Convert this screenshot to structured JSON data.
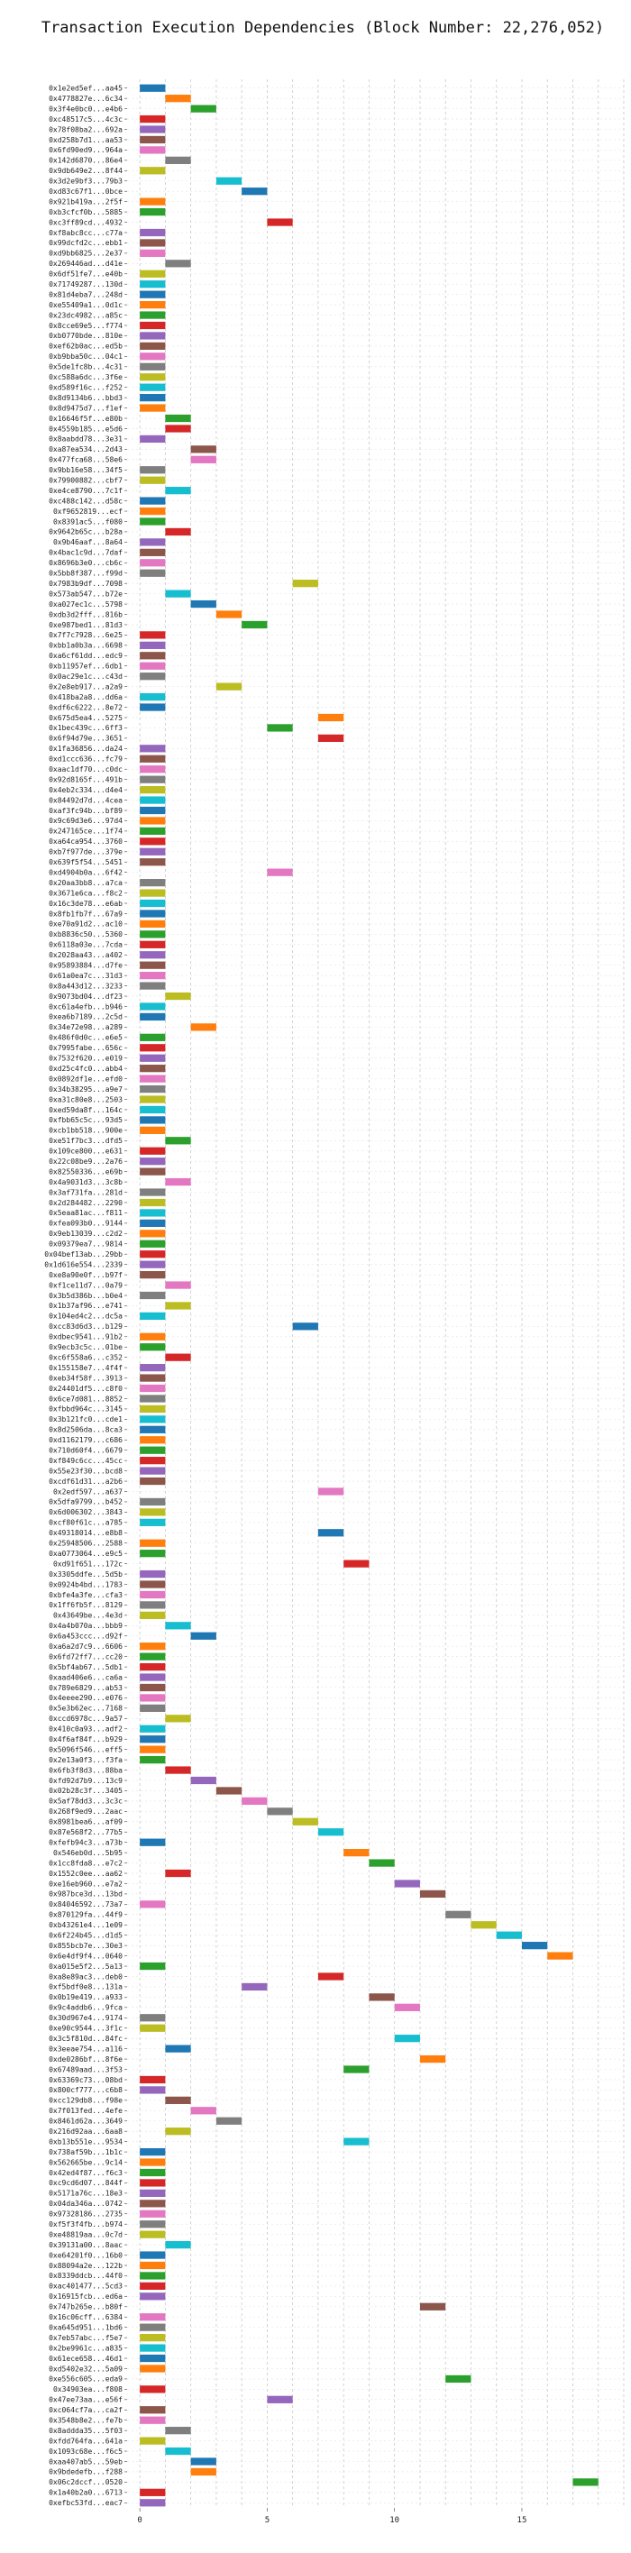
{
  "chart_data": {
    "type": "bar",
    "orientation": "horizontal-gantt",
    "title": "Transaction Execution Dependencies (Block Number: 22,276,052)",
    "xlabel": "",
    "ylabel": "",
    "xlim": [
      -0.5,
      19
    ],
    "xticks": [
      0,
      5,
      10,
      15
    ],
    "grid": true,
    "colors": [
      "#1f77b4",
      "#ff7f0e",
      "#2ca02c",
      "#d62728",
      "#9467bd",
      "#8c564b",
      "#e377c2",
      "#7f7f7f",
      "#bcbd22",
      "#17becf"
    ],
    "transactions": [
      {
        "label": "0x1e2ed5ef...aa45",
        "start": 0
      },
      {
        "label": "0x4778827e...6c34",
        "start": 1
      },
      {
        "label": "0x3f4e0bc0...e4b6",
        "start": 2
      },
      {
        "label": "0xc48517c5...4c3c",
        "start": 0
      },
      {
        "label": "0x78f08ba2...692a",
        "start": 0
      },
      {
        "label": "0xd258b7d1...aa53",
        "start": 0
      },
      {
        "label": "0x6fd90ed9...964a",
        "start": 0
      },
      {
        "label": "0x142d6870...86e4",
        "start": 1
      },
      {
        "label": "0x9db649e2...8f44",
        "start": 0
      },
      {
        "label": "0x3d2e9bf3...79b3",
        "start": 3
      },
      {
        "label": "0xd83c67f1...0bce",
        "start": 4
      },
      {
        "label": "0x921b419a...2f5f",
        "start": 0
      },
      {
        "label": "0xb3cfcf0b...5885",
        "start": 0
      },
      {
        "label": "0xc3ff89cd...4932",
        "start": 5
      },
      {
        "label": "0xf8abc8cc...c77a",
        "start": 0
      },
      {
        "label": "0x99dcfd2c...ebb1",
        "start": 0
      },
      {
        "label": "0xd9bb6825...2e37",
        "start": 0
      },
      {
        "label": "0x269446ad...d41e",
        "start": 1
      },
      {
        "label": "0x6df51fe7...e40b",
        "start": 0
      },
      {
        "label": "0x71749287...130d",
        "start": 0
      },
      {
        "label": "0x81d4eba7...248d",
        "start": 0
      },
      {
        "label": "0xe55409a1...0d1c",
        "start": 0
      },
      {
        "label": "0x23dc4982...a85c",
        "start": 0
      },
      {
        "label": "0x8cce69e5...f774",
        "start": 0
      },
      {
        "label": "0xb0770bde...810e",
        "start": 0
      },
      {
        "label": "0xef62b0ac...ed5b",
        "start": 0
      },
      {
        "label": "0xb9bba50c...04c1",
        "start": 0
      },
      {
        "label": "0x5de1fc8b...4c31",
        "start": 0
      },
      {
        "label": "0xc588a6dc...3f6e",
        "start": 0
      },
      {
        "label": "0xd589f16c...f252",
        "start": 0
      },
      {
        "label": "0x8d9134b6...bbd3",
        "start": 0
      },
      {
        "label": "0x8d9475d7...f1ef",
        "start": 0
      },
      {
        "label": "0x16646f5f...e80b",
        "start": 1
      },
      {
        "label": "0x4559b185...e5d6",
        "start": 1
      },
      {
        "label": "0x8aabdd78...3e31",
        "start": 0
      },
      {
        "label": "0xa87ea534...2d43",
        "start": 2
      },
      {
        "label": "0x477fca68...58e6",
        "start": 2
      },
      {
        "label": "0x9bb16e58...34f5",
        "start": 0
      },
      {
        "label": "0x79900882...cbf7",
        "start": 0
      },
      {
        "label": "0xe4ce8790...7c1f",
        "start": 1
      },
      {
        "label": "0xc488c142...d58c",
        "start": 0
      },
      {
        "label": "0xf9652819...ecf",
        "start": 0
      },
      {
        "label": "0x8391ac5...f080",
        "start": 0
      },
      {
        "label": "0x9642b65c...b28a",
        "start": 1
      },
      {
        "label": "0x9b46aaf...8a64",
        "start": 0
      },
      {
        "label": "0x4bac1c9d...7daf",
        "start": 0
      },
      {
        "label": "0x8696b3e0...cb6c",
        "start": 0
      },
      {
        "label": "0x5bb8f387...f99d",
        "start": 0
      },
      {
        "label": "0x7983b9df...7098",
        "start": 6
      },
      {
        "label": "0x573ab547...b72e",
        "start": 1
      },
      {
        "label": "0xa027ec1c...5798",
        "start": 2
      },
      {
        "label": "0xdb3d2fff...816b",
        "start": 3
      },
      {
        "label": "0xe987bed1...81d3",
        "start": 4
      },
      {
        "label": "0x7f7c7928...6e25",
        "start": 0
      },
      {
        "label": "0xbb1a0b3a...6698",
        "start": 0
      },
      {
        "label": "0xa6cf61dd...edc9",
        "start": 0
      },
      {
        "label": "0xb11957ef...6db1",
        "start": 0
      },
      {
        "label": "0x0ac29e1c...c43d",
        "start": 0
      },
      {
        "label": "0x2e8eb917...a2a9",
        "start": 3
      },
      {
        "label": "0x418ba2a8...dd6a",
        "start": 0
      },
      {
        "label": "0xdf6c6222...8e72",
        "start": 0
      },
      {
        "label": "0x675d5ea4...5275",
        "start": 7
      },
      {
        "label": "0x1bec439c...6ff3",
        "start": 5
      },
      {
        "label": "0x6f94d79e...3651",
        "start": 7
      },
      {
        "label": "0x1fa36856...da24",
        "start": 0
      },
      {
        "label": "0xd1ccc636...fc79",
        "start": 0
      },
      {
        "label": "0xaac1df70...c0dc",
        "start": 0
      },
      {
        "label": "0x92d8165f...491b",
        "start": 0
      },
      {
        "label": "0x4eb2c334...d4e4",
        "start": 0
      },
      {
        "label": "0x84492d7d...4cea",
        "start": 0
      },
      {
        "label": "0xaf3fc94b...bf89",
        "start": 0
      },
      {
        "label": "0x9c69d3e6...97d4",
        "start": 0
      },
      {
        "label": "0x247165ce...1f74",
        "start": 0
      },
      {
        "label": "0xa64ca954...3760",
        "start": 0
      },
      {
        "label": "0xb7f977de...379e",
        "start": 0
      },
      {
        "label": "0x639f5f54...5451",
        "start": 0
      },
      {
        "label": "0xd4904b0a...6f42",
        "start": 5
      },
      {
        "label": "0x20aa3bb8...a7ca",
        "start": 0
      },
      {
        "label": "0x3671e6ca...f8c2",
        "start": 0
      },
      {
        "label": "0x16c3de78...e6ab",
        "start": 0
      },
      {
        "label": "0x8fb1fb7f...67a9",
        "start": 0
      },
      {
        "label": "0xe70a91d2...ac10",
        "start": 0
      },
      {
        "label": "0xb8836c50...5360",
        "start": 0
      },
      {
        "label": "0x6118a03e...7cda",
        "start": 0
      },
      {
        "label": "0x2028aa43...a402",
        "start": 0
      },
      {
        "label": "0x95893884...d7fe",
        "start": 0
      },
      {
        "label": "0x61a0ea7c...31d3",
        "start": 0
      },
      {
        "label": "0x8a443d12...3233",
        "start": 0
      },
      {
        "label": "0x9073bd04...df23",
        "start": 1
      },
      {
        "label": "0xc61a4efb...b946",
        "start": 0
      },
      {
        "label": "0xea6b7189...2c5d",
        "start": 0
      },
      {
        "label": "0x34e72e98...a289",
        "start": 2
      },
      {
        "label": "0x486f0d0c...e6e5",
        "start": 0
      },
      {
        "label": "0x7995fabe...656c",
        "start": 0
      },
      {
        "label": "0x7532f620...e019",
        "start": 0
      },
      {
        "label": "0xd25c4fc0...abb4",
        "start": 0
      },
      {
        "label": "0x0892df1e...efd0",
        "start": 0
      },
      {
        "label": "0x34b38295...a9e7",
        "start": 0
      },
      {
        "label": "0xa31c80e8...2503",
        "start": 0
      },
      {
        "label": "0xed59da8f...164c",
        "start": 0
      },
      {
        "label": "0xfbb65c5c...93d5",
        "start": 0
      },
      {
        "label": "0xcb1bb518...900e",
        "start": 0
      },
      {
        "label": "0xe51f7bc3...dfd5",
        "start": 1
      },
      {
        "label": "0x109ce800...e631",
        "start": 0
      },
      {
        "label": "0x22c08be9...2a76",
        "start": 0
      },
      {
        "label": "0x82550336...e69b",
        "start": 0
      },
      {
        "label": "0x4a9031d3...3c8b",
        "start": 1
      },
      {
        "label": "0x3af731fa...281d",
        "start": 0
      },
      {
        "label": "0x2d284482...2290",
        "start": 0
      },
      {
        "label": "0x5eaa81ac...f811",
        "start": 0
      },
      {
        "label": "0xfea093b0...9144",
        "start": 0
      },
      {
        "label": "0x9eb13039...c2d2",
        "start": 0
      },
      {
        "label": "0x09379ea7...9814",
        "start": 0
      },
      {
        "label": "0x04bef13ab...29bb",
        "start": 0
      },
      {
        "label": "0x1d616e554...2339",
        "start": 0
      },
      {
        "label": "0xe8a90e0f...b97f",
        "start": 0
      },
      {
        "label": "0xf1ce11d7...0a79",
        "start": 1
      },
      {
        "label": "0x3b5d386b...b0e4",
        "start": 0
      },
      {
        "label": "0x1b37af96...e741",
        "start": 1
      },
      {
        "label": "0x104ed4c2...dc5a",
        "start": 0
      },
      {
        "label": "0xcc83d6d3...b129",
        "start": 6
      },
      {
        "label": "0xdbec9541...91b2",
        "start": 0
      },
      {
        "label": "0x9ecb3c5c...01be",
        "start": 0
      },
      {
        "label": "0xc6f558a6...c352",
        "start": 1
      },
      {
        "label": "0x155158e7...4f4f",
        "start": 0
      },
      {
        "label": "0xeb34f58f...3913",
        "start": 0
      },
      {
        "label": "0x24401df5...c8f0",
        "start": 0
      },
      {
        "label": "0x6ce7d081...8852",
        "start": 0
      },
      {
        "label": "0xfbbd964c...3145",
        "start": 0
      },
      {
        "label": "0x3b121fc0...cde1",
        "start": 0
      },
      {
        "label": "0x8d2506da...8ca3",
        "start": 0
      },
      {
        "label": "0xd1162179...c686",
        "start": 0
      },
      {
        "label": "0x710d60f4...6679",
        "start": 0
      },
      {
        "label": "0xf849c6cc...45cc",
        "start": 0
      },
      {
        "label": "0x55e23f30...bcd8",
        "start": 0
      },
      {
        "label": "0xcdf61d31...a2b6",
        "start": 0
      },
      {
        "label": "0x2edf597...a637",
        "start": 7
      },
      {
        "label": "0x5dfa9799...b452",
        "start": 0
      },
      {
        "label": "0x6d006302...3843",
        "start": 0
      },
      {
        "label": "0xcf80f61c...a785",
        "start": 0
      },
      {
        "label": "0x49318014...e8b8",
        "start": 7
      },
      {
        "label": "0x25948506...2588",
        "start": 0
      },
      {
        "label": "0xa0773064...e9c5",
        "start": 0
      },
      {
        "label": "0xd91f651...172c",
        "start": 8
      },
      {
        "label": "0x3305ddfe...5d5b",
        "start": 0
      },
      {
        "label": "0x0924b4bd...1783",
        "start": 0
      },
      {
        "label": "0xbfe4a3fe...cfa3",
        "start": 0
      },
      {
        "label": "0x1ff6fb5f...8129",
        "start": 0
      },
      {
        "label": "0x43649be...4e3d",
        "start": 0
      },
      {
        "label": "0x4a4b070a...bbb9",
        "start": 1
      },
      {
        "label": "0x6a453ccc...d92f",
        "start": 2
      },
      {
        "label": "0xa6a2d7c9...6606",
        "start": 0
      },
      {
        "label": "0x6fd72ff7...cc20",
        "start": 0
      },
      {
        "label": "0x5bf4ab67...5db1",
        "start": 0
      },
      {
        "label": "0xaad406e6...ca6a",
        "start": 0
      },
      {
        "label": "0x789e6829...ab53",
        "start": 0
      },
      {
        "label": "0x4eeee290...e076",
        "start": 0
      },
      {
        "label": "0x5e3b62ec...7168",
        "start": 0
      },
      {
        "label": "0xccd6978c...9a57",
        "start": 1
      },
      {
        "label": "0x410c0a93...adf2",
        "start": 0
      },
      {
        "label": "0x4f6af84f...b929",
        "start": 0
      },
      {
        "label": "0x5096f546...eff5",
        "start": 0
      },
      {
        "label": "0x2e13a0f3...f3fa",
        "start": 0
      },
      {
        "label": "0x6fb3f8d3...88ba",
        "start": 1
      },
      {
        "label": "0xfd92d7b9...13c9",
        "start": 2
      },
      {
        "label": "0x02b28c3f...3405",
        "start": 3
      },
      {
        "label": "0x5af78dd3...3c3c",
        "start": 4
      },
      {
        "label": "0x268f9ed9...2aac",
        "start": 5
      },
      {
        "label": "0x8981bea6...af09",
        "start": 6
      },
      {
        "label": "0x87e568f2...77b5",
        "start": 7
      },
      {
        "label": "0xfefb94c3...a73b",
        "start": 0
      },
      {
        "label": "0x546eb0d...5b95",
        "start": 8
      },
      {
        "label": "0x1cc8fda8...e7c2",
        "start": 9
      },
      {
        "label": "0x1552c0ee...aa62",
        "start": 1
      },
      {
        "label": "0xe16eb960...e7a2",
        "start": 10
      },
      {
        "label": "0x987bce3d...13bd",
        "start": 11
      },
      {
        "label": "0x84046592...73a7",
        "start": 0
      },
      {
        "label": "0x870129fa...44f9",
        "start": 12
      },
      {
        "label": "0xb43261e4...1e09",
        "start": 13
      },
      {
        "label": "0x6f224b45...d1d5",
        "start": 14
      },
      {
        "label": "0x855bcb7e...30e3",
        "start": 15
      },
      {
        "label": "0x6e4df9f4...0640",
        "start": 16
      },
      {
        "label": "0xa015e5f2...5a13",
        "start": 0
      },
      {
        "label": "0xa8e89ac3...deb0",
        "start": 7
      },
      {
        "label": "0xf5bdf0e8...131a",
        "start": 4
      },
      {
        "label": "0x0b19e419...a933",
        "start": 9
      },
      {
        "label": "0x9c4addb6...9fca",
        "start": 10
      },
      {
        "label": "0x30d967e4...9174",
        "start": 0
      },
      {
        "label": "0xe90c9544...3f1c",
        "start": 0
      },
      {
        "label": "0x3c5f810d...84fc",
        "start": 10
      },
      {
        "label": "0x3eeae754...a116",
        "start": 1
      },
      {
        "label": "0xde0286bf...8f6e",
        "start": 11
      },
      {
        "label": "0x67489aad...3f53",
        "start": 8
      },
      {
        "label": "0x63369c73...08bd",
        "start": 0
      },
      {
        "label": "0x800cf777...c6b8",
        "start": 0
      },
      {
        "label": "0xcc129db8...f98e",
        "start": 1
      },
      {
        "label": "0x7f013fed...4efe",
        "start": 2
      },
      {
        "label": "0x8461d62a...3649",
        "start": 3
      },
      {
        "label": "0x216d92aa...6aa8",
        "start": 1
      },
      {
        "label": "0xb13b551e...9534",
        "start": 8
      },
      {
        "label": "0x738af59b...1b1c",
        "start": 0
      },
      {
        "label": "0x562665be...9c14",
        "start": 0
      },
      {
        "label": "0x42ed4f87...f6c3",
        "start": 0
      },
      {
        "label": "0xc9cd6d07...844f",
        "start": 0
      },
      {
        "label": "0x5171a76c...18e3",
        "start": 0
      },
      {
        "label": "0x04da346a...0742",
        "start": 0
      },
      {
        "label": "0x97328186...2735",
        "start": 0
      },
      {
        "label": "0xf5f3f4fb...b974",
        "start": 0
      },
      {
        "label": "0xe48819aa...0c7d",
        "start": 0
      },
      {
        "label": "0x39131a00...8aac",
        "start": 1
      },
      {
        "label": "0xe64201f0...16b0",
        "start": 0
      },
      {
        "label": "0x88094a2e...122b",
        "start": 0
      },
      {
        "label": "0x8339ddcb...44f0",
        "start": 0
      },
      {
        "label": "0xac401477...5cd3",
        "start": 0
      },
      {
        "label": "0x16915fcb...ed6a",
        "start": 0
      },
      {
        "label": "0x747b265e...b80f",
        "start": 11
      },
      {
        "label": "0x16c06cff...6384",
        "start": 0
      },
      {
        "label": "0xa645d951...1bd6",
        "start": 0
      },
      {
        "label": "0x7eb57abc...f5e7",
        "start": 0
      },
      {
        "label": "0x2be9961c...a835",
        "start": 0
      },
      {
        "label": "0x61ece658...46d1",
        "start": 0
      },
      {
        "label": "0xd5402e32...5a09",
        "start": 0
      },
      {
        "label": "0xe556c605...eda9",
        "start": 12
      },
      {
        "label": "0x34903ea...f808",
        "start": 0
      },
      {
        "label": "0x47ee73aa...e56f",
        "start": 5
      },
      {
        "label": "0xc064cf7a...ca2f",
        "start": 0
      },
      {
        "label": "0x3548b8e2...fe7b",
        "start": 0
      },
      {
        "label": "0x8addda35...5f03",
        "start": 1
      },
      {
        "label": "0xfdd764fa...641a",
        "start": 0
      },
      {
        "label": "0x1093c68e...f6c5",
        "start": 1
      },
      {
        "label": "0xaa407ab5...59eb",
        "start": 2
      },
      {
        "label": "0x9bdedefb...f288",
        "start": 2
      },
      {
        "label": "0x06c2dccf...0520",
        "start": 17
      },
      {
        "label": "0x1a40b2a0...6713",
        "start": 0
      },
      {
        "label": "0xefbc53fd...eac7",
        "start": 0
      }
    ]
  }
}
